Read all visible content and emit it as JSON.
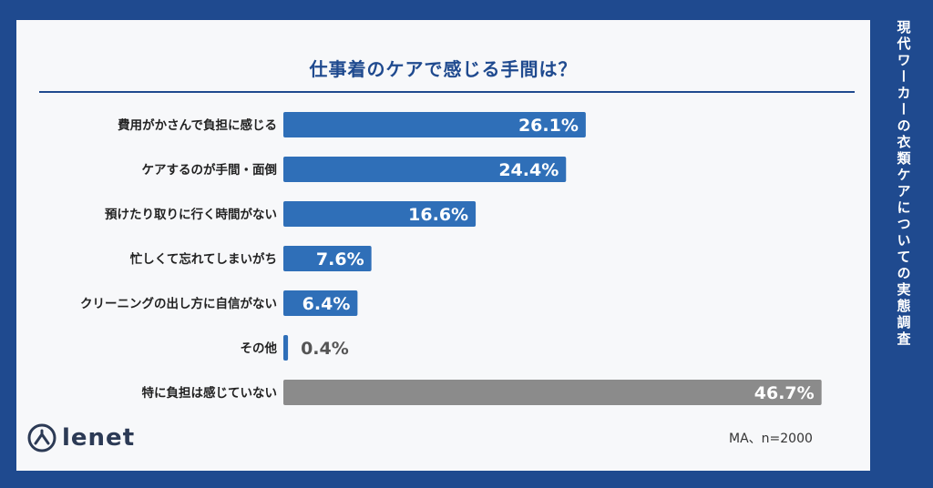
{
  "sidebar": {
    "text": "現代ワーカーの衣類ケアについての実態調査"
  },
  "footer": {
    "brand": "lenet",
    "note": "MA、n=2000"
  },
  "colors": {
    "bar": "#2f6fb8",
    "bar_last": "#8b8b8b",
    "label_outside": "#555555",
    "accent": "#1f4a8f"
  },
  "chart_data": {
    "type": "bar",
    "orientation": "horizontal",
    "title": "仕事着のケアで感じる手間は？",
    "categories": [
      "費用がかさんで負担に感じる",
      "ケアするのが手間・面倒",
      "預けたり取りに行く時間がない",
      "忙しくて忘れてしまいがち",
      "クリーニングの出し方に自信がない",
      "その他",
      "特に負担は感じていない"
    ],
    "values": [
      26.1,
      24.4,
      16.6,
      7.6,
      6.4,
      0.4,
      46.7
    ],
    "value_labels": [
      "26.1%",
      "24.4%",
      "16.6%",
      "7.6%",
      "6.4%",
      "0.4%",
      "46.7%"
    ],
    "xlim": [
      0,
      47.5
    ],
    "grid": false,
    "legend": "none"
  }
}
